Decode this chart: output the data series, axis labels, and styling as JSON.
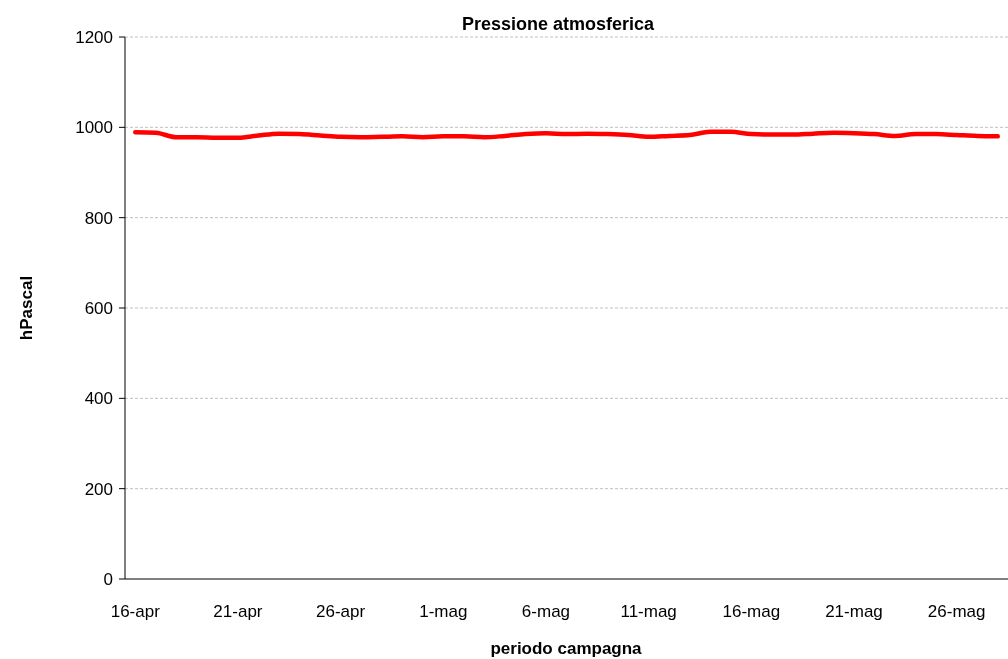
{
  "chart_data": {
    "type": "line",
    "title": "Pressione atmosferica",
    "xlabel": "periodo campagna",
    "ylabel": "hPascal",
    "categories": [
      "16-apr",
      null,
      null,
      null,
      null,
      "21-apr",
      null,
      null,
      null,
      null,
      "26-apr",
      null,
      null,
      null,
      null,
      "1-mag",
      null,
      null,
      null,
      null,
      "6-mag",
      null,
      null,
      null,
      null,
      "11-mag",
      null,
      null,
      null,
      null,
      "16-mag",
      null,
      null,
      null,
      null,
      "21-mag",
      null,
      null,
      null,
      null,
      "26-mag",
      null,
      null
    ],
    "series": [
      {
        "color": "#ff0000",
        "values": [
          989,
          988,
          978,
          978,
          977,
          977,
          982,
          986,
          985,
          982,
          979,
          978,
          979,
          980,
          978,
          980,
          980,
          978,
          981,
          985,
          987,
          985,
          986,
          985,
          983,
          979,
          981,
          983,
          990,
          990,
          985,
          984,
          984,
          986,
          988,
          987,
          985,
          981,
          985,
          985,
          983,
          981,
          980
        ]
      }
    ],
    "ylim": [
      0,
      1200
    ],
    "yticks": [
      0,
      200,
      400,
      600,
      800,
      1000,
      1200
    ],
    "grid": "y",
    "marker": "none",
    "line_style": "solid"
  }
}
